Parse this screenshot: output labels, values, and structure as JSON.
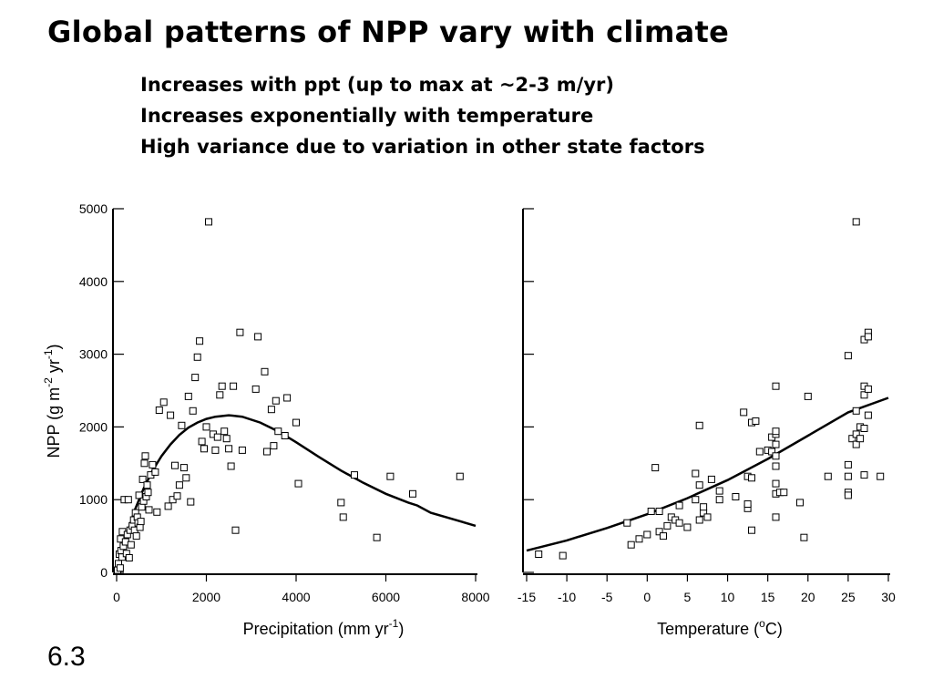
{
  "slide": {
    "title": "Global patterns of NPP vary with climate",
    "bullets": [
      "Increases with ppt (up to max at ~2-3 m/yr)",
      "Increases exponentially with temperature",
      "High variance due to variation in other state factors"
    ],
    "slide_number": "6.3"
  },
  "chart_data": [
    {
      "type": "scatter",
      "xlabel_main": "Precipitation (mm  yr",
      "xlabel_sup": "-1",
      "xlabel_close": ")",
      "ylabel_main": "NPP (g m",
      "ylabel_sup1": "-2",
      "ylabel_mid": " yr",
      "ylabel_sup2": "-1",
      "ylabel_close": ")",
      "xlim": [
        0,
        8000
      ],
      "ylim": [
        0,
        5000
      ],
      "xticks": [
        0,
        2000,
        4000,
        6000,
        8000
      ],
      "yticks": [
        0,
        1000,
        2000,
        3000,
        4000,
        5000
      ],
      "points": [
        [
          20,
          30
        ],
        [
          40,
          120
        ],
        [
          60,
          250
        ],
        [
          80,
          60
        ],
        [
          90,
          460
        ],
        [
          100,
          300
        ],
        [
          120,
          210
        ],
        [
          130,
          560
        ],
        [
          150,
          360
        ],
        [
          170,
          1000
        ],
        [
          200,
          420
        ],
        [
          220,
          260
        ],
        [
          240,
          520
        ],
        [
          260,
          1000
        ],
        [
          280,
          200
        ],
        [
          300,
          580
        ],
        [
          320,
          380
        ],
        [
          350,
          640
        ],
        [
          380,
          720
        ],
        [
          400,
          580
        ],
        [
          420,
          820
        ],
        [
          440,
          500
        ],
        [
          460,
          760
        ],
        [
          480,
          680
        ],
        [
          500,
          1060
        ],
        [
          520,
          620
        ],
        [
          540,
          700
        ],
        [
          560,
          900
        ],
        [
          580,
          1280
        ],
        [
          600,
          980
        ],
        [
          620,
          1500
        ],
        [
          640,
          1600
        ],
        [
          660,
          1040
        ],
        [
          680,
          1200
        ],
        [
          700,
          1100
        ],
        [
          720,
          860
        ],
        [
          760,
          1340
        ],
        [
          800,
          1480
        ],
        [
          860,
          1380
        ],
        [
          900,
          830
        ],
        [
          950,
          2230
        ],
        [
          1050,
          2340
        ],
        [
          1150,
          910
        ],
        [
          1200,
          2160
        ],
        [
          1250,
          1000
        ],
        [
          1300,
          1470
        ],
        [
          1350,
          1050
        ],
        [
          1400,
          1200
        ],
        [
          1450,
          2020
        ],
        [
          1500,
          1440
        ],
        [
          1550,
          1300
        ],
        [
          1600,
          2420
        ],
        [
          1650,
          970
        ],
        [
          1700,
          2220
        ],
        [
          1750,
          2680
        ],
        [
          1800,
          2960
        ],
        [
          1850,
          3180
        ],
        [
          1900,
          1800
        ],
        [
          1950,
          1700
        ],
        [
          2000,
          2000
        ],
        [
          2050,
          4820
        ],
        [
          2150,
          1900
        ],
        [
          2200,
          1680
        ],
        [
          2250,
          1860
        ],
        [
          2300,
          2440
        ],
        [
          2350,
          2560
        ],
        [
          2400,
          1940
        ],
        [
          2450,
          1840
        ],
        [
          2500,
          1700
        ],
        [
          2550,
          1460
        ],
        [
          2600,
          2560
        ],
        [
          2650,
          580
        ],
        [
          2750,
          3300
        ],
        [
          2800,
          1680
        ],
        [
          3100,
          2520
        ],
        [
          3150,
          3240
        ],
        [
          3300,
          2760
        ],
        [
          3350,
          1660
        ],
        [
          3450,
          2240
        ],
        [
          3500,
          1740
        ],
        [
          3550,
          2360
        ],
        [
          3600,
          1940
        ],
        [
          3750,
          1880
        ],
        [
          3800,
          2400
        ],
        [
          4000,
          2060
        ],
        [
          4050,
          1220
        ],
        [
          5000,
          960
        ],
        [
          5050,
          760
        ],
        [
          5300,
          1340
        ],
        [
          5800,
          480
        ],
        [
          6100,
          1320
        ],
        [
          6600,
          1080
        ],
        [
          7650,
          1320
        ]
      ],
      "fit_curve": [
        [
          0,
          0
        ],
        [
          200,
          450
        ],
        [
          400,
          850
        ],
        [
          600,
          1150
        ],
        [
          800,
          1400
        ],
        [
          1000,
          1600
        ],
        [
          1200,
          1760
        ],
        [
          1400,
          1890
        ],
        [
          1600,
          1990
        ],
        [
          1800,
          2060
        ],
        [
          2000,
          2110
        ],
        [
          2200,
          2140
        ],
        [
          2500,
          2160
        ],
        [
          2800,
          2140
        ],
        [
          3200,
          2060
        ],
        [
          3600,
          1940
        ],
        [
          4000,
          1790
        ],
        [
          4500,
          1590
        ],
        [
          5000,
          1400
        ],
        [
          5500,
          1230
        ],
        [
          6000,
          1080
        ],
        [
          6500,
          960
        ],
        [
          6700,
          920
        ],
        [
          7000,
          820
        ],
        [
          7500,
          730
        ],
        [
          8000,
          640
        ]
      ]
    },
    {
      "type": "scatter",
      "xlabel_main": "Temperature (",
      "xlabel_sup": "o",
      "xlabel_close": "C)",
      "xlim": [
        -15,
        30
      ],
      "ylim": [
        0,
        5000
      ],
      "xticks": [
        -15,
        -10,
        -5,
        0,
        5,
        10,
        15,
        20,
        25,
        30
      ],
      "yticks": [
        0,
        1000,
        2000,
        3000,
        4000,
        5000
      ],
      "points": [
        [
          -13.5,
          250
        ],
        [
          -10.5,
          230
        ],
        [
          -2.5,
          680
        ],
        [
          -2,
          380
        ],
        [
          -1,
          460
        ],
        [
          0,
          520
        ],
        [
          0.5,
          840
        ],
        [
          1,
          1440
        ],
        [
          1.5,
          560
        ],
        [
          1.5,
          840
        ],
        [
          2,
          500
        ],
        [
          2.5,
          640
        ],
        [
          3,
          760
        ],
        [
          3.5,
          720
        ],
        [
          4,
          920
        ],
        [
          4,
          680
        ],
        [
          5,
          620
        ],
        [
          6,
          1000
        ],
        [
          6,
          1360
        ],
        [
          6.5,
          1200
        ],
        [
          6.5,
          2020
        ],
        [
          6.5,
          720
        ],
        [
          7,
          820
        ],
        [
          7,
          900
        ],
        [
          7.5,
          760
        ],
        [
          8,
          1280
        ],
        [
          9,
          1120
        ],
        [
          9,
          1000
        ],
        [
          11,
          1040
        ],
        [
          12,
          2200
        ],
        [
          12.5,
          880
        ],
        [
          12.5,
          1320
        ],
        [
          12.5,
          940
        ],
        [
          13,
          1300
        ],
        [
          13,
          2060
        ],
        [
          13,
          580
        ],
        [
          13.5,
          2080
        ],
        [
          14,
          1660
        ],
        [
          15,
          1680
        ],
        [
          15.5,
          1660
        ],
        [
          15.5,
          1860
        ],
        [
          16,
          1900
        ],
        [
          16,
          1760
        ],
        [
          16,
          1600
        ],
        [
          16,
          1460
        ],
        [
          16,
          1220
        ],
        [
          16,
          760
        ],
        [
          16,
          1940
        ],
        [
          16,
          2560
        ],
        [
          16,
          1080
        ],
        [
          16.5,
          1100
        ],
        [
          17,
          1100
        ],
        [
          19,
          960
        ],
        [
          19.5,
          480
        ],
        [
          20,
          2420
        ],
        [
          22.5,
          1320
        ],
        [
          25,
          1320
        ],
        [
          25,
          1480
        ],
        [
          25,
          1100
        ],
        [
          25,
          2980
        ],
        [
          25,
          1060
        ],
        [
          25.5,
          1840
        ],
        [
          26,
          1760
        ],
        [
          26,
          2220
        ],
        [
          26,
          1900
        ],
        [
          26,
          4820
        ],
        [
          26.5,
          2000
        ],
        [
          26.5,
          1840
        ],
        [
          27,
          1980
        ],
        [
          27,
          2440
        ],
        [
          27,
          2560
        ],
        [
          27,
          1340
        ],
        [
          27,
          3200
        ],
        [
          27.5,
          2160
        ],
        [
          27.5,
          3300
        ],
        [
          27.5,
          3240
        ],
        [
          27.5,
          2520
        ],
        [
          29,
          1320
        ]
      ],
      "fit_curve": [
        [
          -15,
          300
        ],
        [
          -10,
          440
        ],
        [
          -5,
          610
        ],
        [
          0,
          800
        ],
        [
          5,
          1020
        ],
        [
          10,
          1270
        ],
        [
          15,
          1560
        ],
        [
          20,
          1880
        ],
        [
          25,
          2200
        ],
        [
          30,
          2400
        ]
      ]
    }
  ]
}
